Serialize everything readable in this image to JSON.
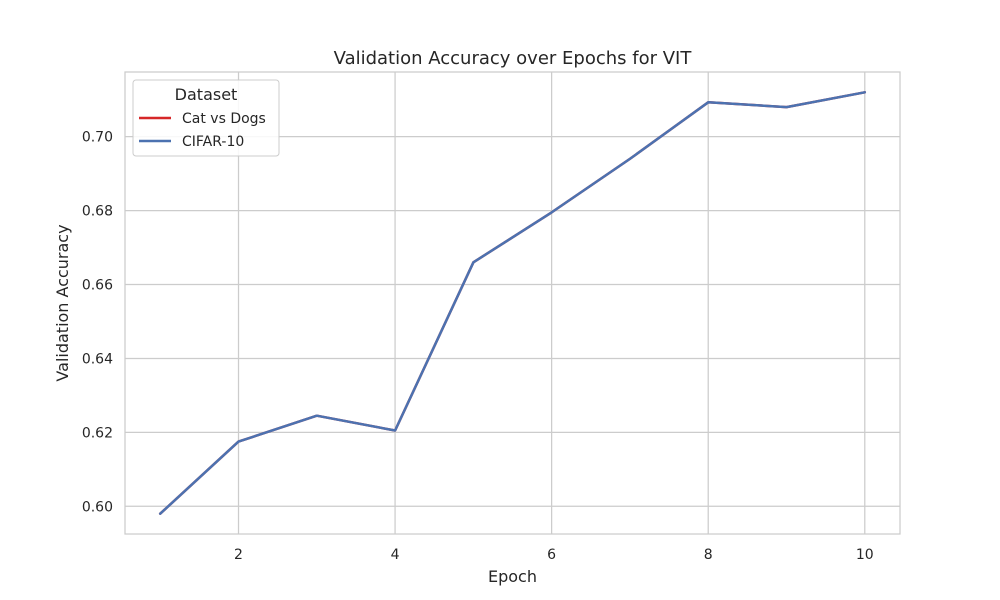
{
  "chart_data": {
    "type": "line",
    "title": "Validation Accuracy over Epochs for VIT",
    "xlabel": "Epoch",
    "ylabel": "Validation Accuracy",
    "xlim": [
      0.55,
      10.45
    ],
    "ylim": [
      0.5925,
      0.7175
    ],
    "x_ticks": [
      2,
      4,
      6,
      8,
      10
    ],
    "y_ticks": [
      0.6,
      0.62,
      0.64,
      0.66,
      0.68,
      0.7
    ],
    "grid": true,
    "legend": {
      "title": "Dataset",
      "placement": "upper-left"
    },
    "series": [
      {
        "name": "Cat vs Dogs",
        "color": "#d62728",
        "x": [
          1,
          2,
          3,
          4,
          5,
          6,
          7,
          8,
          9,
          10
        ],
        "y": [
          0.598,
          0.6175,
          0.6245,
          0.6205,
          0.666,
          0.6795,
          0.694,
          0.7093,
          0.708,
          0.712
        ]
      },
      {
        "name": "CIFAR-10",
        "color": "#4c72b0",
        "x": [
          1,
          2,
          3,
          4,
          5,
          6,
          7,
          8,
          9,
          10
        ],
        "y": [
          0.598,
          0.6175,
          0.6245,
          0.6205,
          0.666,
          0.6795,
          0.694,
          0.7093,
          0.708,
          0.712
        ]
      }
    ]
  }
}
